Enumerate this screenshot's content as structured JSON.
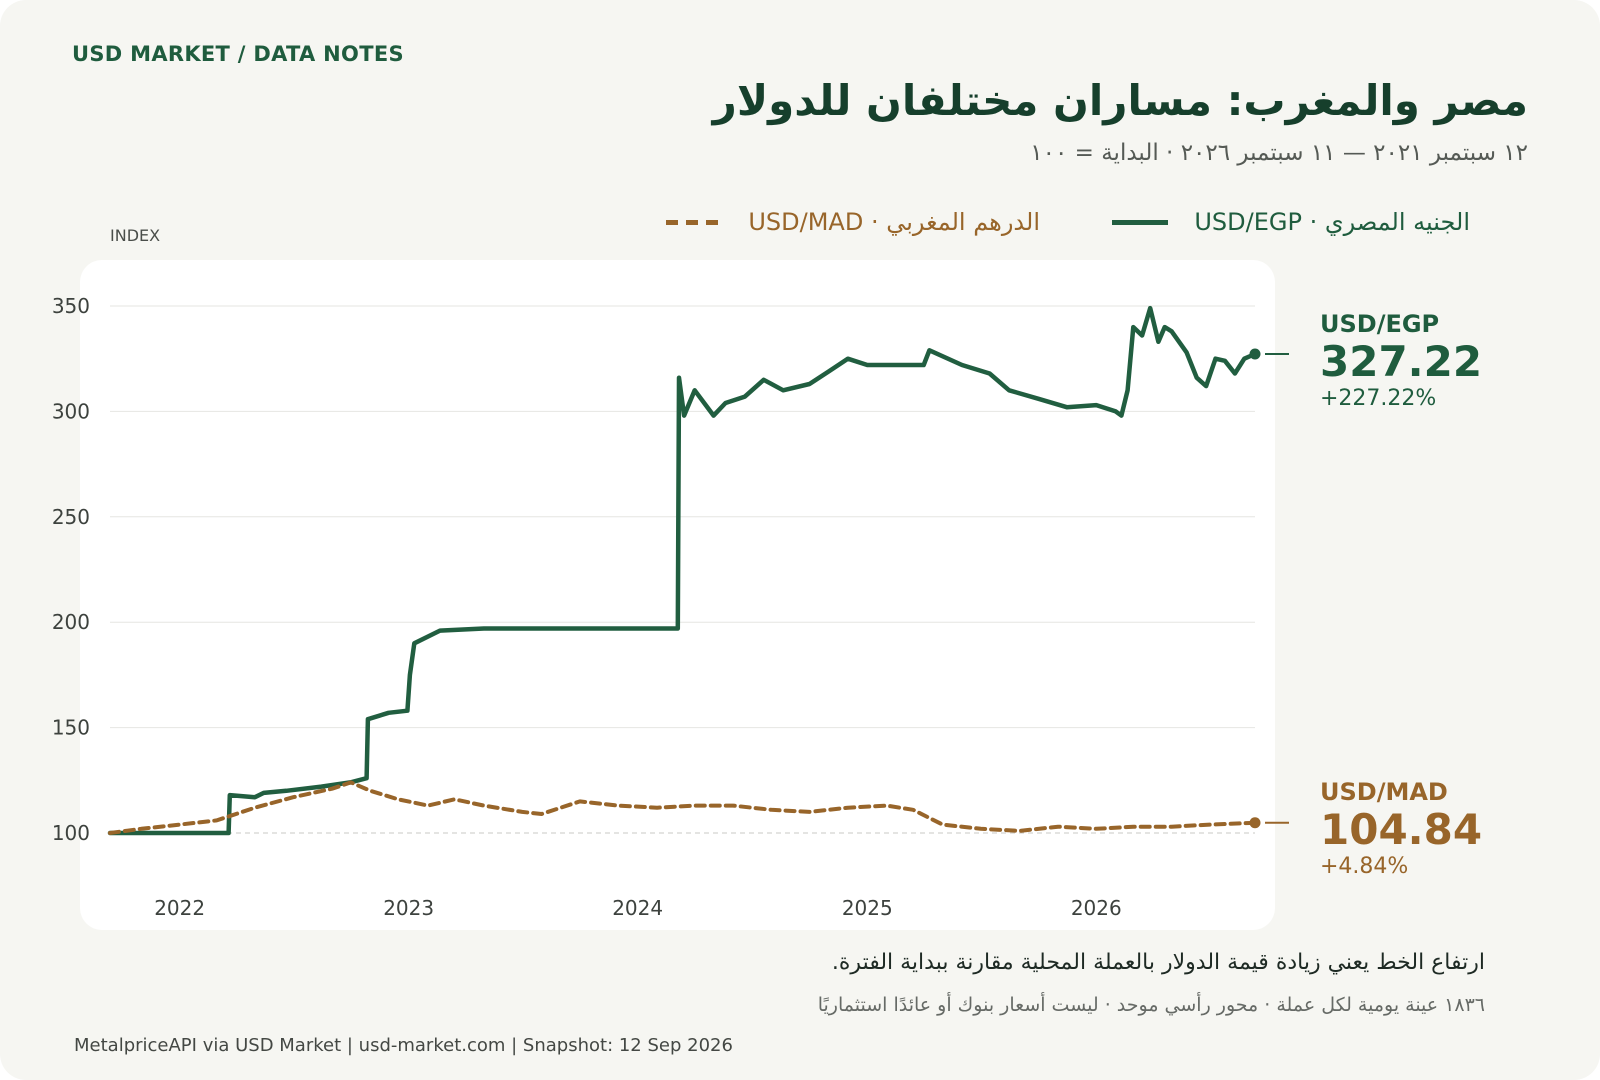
{
  "header": {
    "kicker": "USD MARKET / DATA NOTES",
    "title": "مصر والمغرب: مساران مختلفان للدولار",
    "subtitle": "١٢ سبتمبر ٢٠٢١ — ١١ سبتمبر ٢٠٢٦ · البداية = ١٠٠"
  },
  "legend": {
    "egp": "الجنيه المصري · USD/EGP",
    "mad": "الدرهم المغربي · USD/MAD"
  },
  "colors": {
    "egp": "#215e40",
    "mad": "#98652a"
  },
  "chart_data": {
    "type": "line",
    "ylabel": "INDEX",
    "ylim": [
      100,
      350
    ],
    "yticks": [
      100,
      150,
      200,
      250,
      300,
      350
    ],
    "xlim": [
      "2021-09-12",
      "2026-09-11"
    ],
    "xticks": [
      {
        "label": "2022",
        "date": "2022-01-01"
      },
      {
        "label": "2023",
        "date": "2023-01-01"
      },
      {
        "label": "2024",
        "date": "2024-01-01"
      },
      {
        "label": "2025",
        "date": "2025-01-01"
      },
      {
        "label": "2026",
        "date": "2026-01-01"
      }
    ],
    "grid": true,
    "legend_position": "top",
    "series": [
      {
        "name": "USD/EGP",
        "key": "egp",
        "style": "solid",
        "last_value": "327.22",
        "change": "+227.22%",
        "points": [
          [
            "2021-09-12",
            100
          ],
          [
            "2022-03-20",
            100
          ],
          [
            "2022-03-22",
            118
          ],
          [
            "2022-05-01",
            117
          ],
          [
            "2022-05-15",
            119
          ],
          [
            "2022-06-20",
            120
          ],
          [
            "2022-08-15",
            122
          ],
          [
            "2022-09-30",
            124
          ],
          [
            "2022-10-26",
            126
          ],
          [
            "2022-10-28",
            154
          ],
          [
            "2022-11-30",
            157
          ],
          [
            "2022-12-30",
            158
          ],
          [
            "2023-01-03",
            175
          ],
          [
            "2023-01-10",
            190
          ],
          [
            "2023-02-20",
            196
          ],
          [
            "2023-05-01",
            197
          ],
          [
            "2023-09-01",
            197
          ],
          [
            "2023-12-01",
            197
          ],
          [
            "2024-03-05",
            197
          ],
          [
            "2024-03-07",
            316
          ],
          [
            "2024-03-15",
            298
          ],
          [
            "2024-04-01",
            310
          ],
          [
            "2024-05-01",
            298
          ],
          [
            "2024-05-20",
            304
          ],
          [
            "2024-06-20",
            307
          ],
          [
            "2024-07-20",
            315
          ],
          [
            "2024-08-20",
            310
          ],
          [
            "2024-10-01",
            313
          ],
          [
            "2024-11-01",
            319
          ],
          [
            "2024-12-01",
            325
          ],
          [
            "2025-01-01",
            322
          ],
          [
            "2025-04-01",
            322
          ],
          [
            "2025-04-10",
            329
          ],
          [
            "2025-06-01",
            322
          ],
          [
            "2025-07-15",
            318
          ],
          [
            "2025-08-15",
            310
          ],
          [
            "2025-10-01",
            306
          ],
          [
            "2025-11-15",
            302
          ],
          [
            "2026-01-01",
            303
          ],
          [
            "2026-02-01",
            300
          ],
          [
            "2026-02-10",
            298
          ],
          [
            "2026-02-20",
            310
          ],
          [
            "2026-03-01",
            340
          ],
          [
            "2026-03-15",
            336
          ],
          [
            "2026-03-28",
            349
          ],
          [
            "2026-04-10",
            333
          ],
          [
            "2026-04-20",
            340
          ],
          [
            "2026-05-01",
            338
          ],
          [
            "2026-05-25",
            328
          ],
          [
            "2026-06-10",
            316
          ],
          [
            "2026-06-25",
            312
          ],
          [
            "2026-07-10",
            325
          ],
          [
            "2026-07-25",
            324
          ],
          [
            "2026-08-10",
            318
          ],
          [
            "2026-08-25",
            325
          ],
          [
            "2026-09-11",
            327.22
          ]
        ]
      },
      {
        "name": "USD/MAD",
        "key": "mad",
        "style": "dashed",
        "last_value": "104.84",
        "change": "+4.84%",
        "points": [
          [
            "2021-09-12",
            100
          ],
          [
            "2021-11-01",
            102
          ],
          [
            "2022-01-01",
            104
          ],
          [
            "2022-03-01",
            106
          ],
          [
            "2022-05-01",
            112
          ],
          [
            "2022-07-01",
            117
          ],
          [
            "2022-09-01",
            121
          ],
          [
            "2022-10-01",
            124
          ],
          [
            "2022-11-01",
            120
          ],
          [
            "2022-12-15",
            116
          ],
          [
            "2023-02-01",
            113
          ],
          [
            "2023-03-15",
            116
          ],
          [
            "2023-05-01",
            113
          ],
          [
            "2023-07-01",
            110
          ],
          [
            "2023-08-01",
            109
          ],
          [
            "2023-10-01",
            115
          ],
          [
            "2023-12-01",
            113
          ],
          [
            "2024-02-01",
            112
          ],
          [
            "2024-04-01",
            113
          ],
          [
            "2024-06-01",
            113
          ],
          [
            "2024-08-01",
            111
          ],
          [
            "2024-10-01",
            110
          ],
          [
            "2024-12-01",
            112
          ],
          [
            "2025-02-01",
            113
          ],
          [
            "2025-03-15",
            111
          ],
          [
            "2025-05-01",
            104
          ],
          [
            "2025-07-01",
            102
          ],
          [
            "2025-09-01",
            101
          ],
          [
            "2025-11-01",
            103
          ],
          [
            "2026-01-01",
            102
          ],
          [
            "2026-03-01",
            103
          ],
          [
            "2026-05-01",
            103
          ],
          [
            "2026-07-01",
            104
          ],
          [
            "2026-09-11",
            104.84
          ]
        ]
      }
    ]
  },
  "notes": {
    "line1": "ارتفاع الخط يعني زيادة قيمة الدولار بالعملة المحلية مقارنة ببداية الفترة.",
    "line2": "١٨٣٦ عينة يومية لكل عملة · محور رأسي موحد · ليست أسعار بنوك أو عائدًا استثماريًا"
  },
  "footer": "MetalpriceAPI via USD Market | usd-market.com | Snapshot: 12 Sep 2026"
}
